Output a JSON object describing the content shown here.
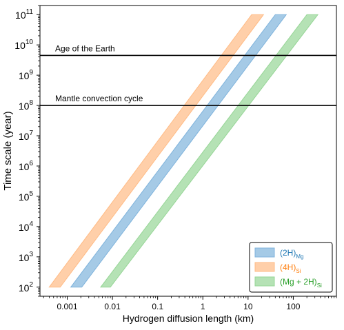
{
  "chart_data": {
    "type": "area",
    "title": "",
    "xlabel": "Hydrogen diffusion length (km)",
    "ylabel": "Time scale (year)",
    "xscale": "log",
    "yscale": "log",
    "xlim": [
      0.00025,
      900
    ],
    "ylim": [
      50,
      200000000000
    ],
    "x_ticks": [
      {
        "value": 0.001,
        "label": "0.001"
      },
      {
        "value": 0.01,
        "label": "0.01"
      },
      {
        "value": 0.1,
        "label": "0.1"
      },
      {
        "value": 1,
        "label": "1"
      },
      {
        "value": 10,
        "label": "10"
      },
      {
        "value": 100,
        "label": "100"
      }
    ],
    "y_ticks": [
      {
        "exp": 2,
        "base": "10",
        "sup": "2"
      },
      {
        "exp": 3,
        "base": "10",
        "sup": "3"
      },
      {
        "exp": 4,
        "base": "10",
        "sup": "4"
      },
      {
        "exp": 5,
        "base": "10",
        "sup": "5"
      },
      {
        "exp": 6,
        "base": "10",
        "sup": "6"
      },
      {
        "exp": 7,
        "base": "10",
        "sup": "7"
      },
      {
        "exp": 8,
        "base": "10",
        "sup": "8"
      },
      {
        "exp": 9,
        "base": "10",
        "sup": "9"
      },
      {
        "exp": 10,
        "base": "10",
        "sup": "10"
      },
      {
        "exp": 11,
        "base": "10",
        "sup": "11"
      }
    ],
    "series": [
      {
        "label_main": "(2H)",
        "label_sub": "Mg",
        "color": "#7fb3dc",
        "text_color": "#1f77b4",
        "x_low": [
          0.0012,
          0.0021
        ],
        "x_high": [
          40,
          70
        ],
        "t": [
          100,
          100000000000
        ]
      },
      {
        "label_main": "(4H)",
        "label_sub": "Si",
        "color": "#ffbb85",
        "text_color": "#ff7f0e",
        "x_low": [
          0.0004,
          0.0007
        ],
        "x_high": [
          12,
          22
        ],
        "t": [
          100,
          100000000000
        ]
      },
      {
        "label_main": "(Mg + 2H)",
        "label_sub": "Si",
        "color": "#96d596",
        "text_color": "#2ca02c",
        "x_low": [
          0.0055,
          0.009
        ],
        "x_high": [
          200,
          350
        ],
        "t": [
          100,
          100000000000
        ]
      }
    ],
    "hlines": [
      {
        "value": 4500000000,
        "label": "Age of the Earth"
      },
      {
        "value": 100000000,
        "label": "Mantle convection cycle"
      }
    ],
    "legend": "bottom-right",
    "grid": false
  },
  "colors": {
    "overlap": "#8a8a8a",
    "axis": "#000000"
  }
}
